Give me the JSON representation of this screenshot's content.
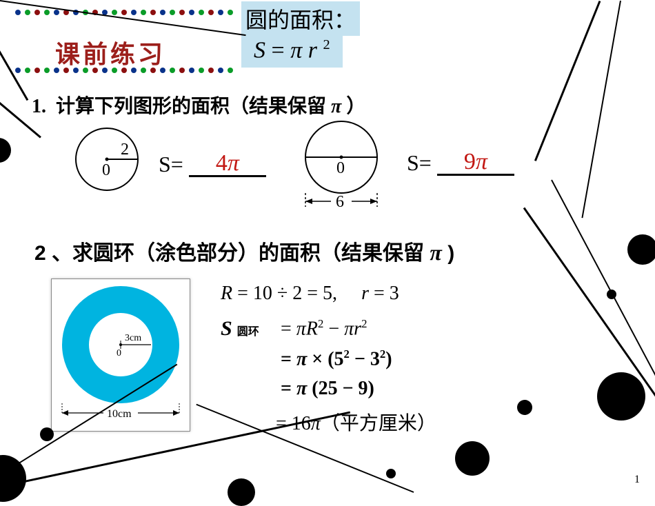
{
  "header": {
    "title": "课前练习",
    "title_color": "#9c1f1b",
    "dot_colors": [
      "#09328a",
      "#0a9c28",
      "#8c0f0f",
      "#0a9c28",
      "#09328a",
      "#8c0f0f",
      "#09328a",
      "#0a9c28",
      "#8c0f0f",
      "#09328a",
      "#0a9c28",
      "#8c0f0f",
      "#09328a",
      "#0a9c28",
      "#8c0f0f",
      "#09328a",
      "#0a9c28",
      "#8c0f0f",
      "#09328a",
      "#0a9c28",
      "#8c0f0f",
      "#09328a",
      "#0a9c28"
    ]
  },
  "formula_box": {
    "title": "圆的面积：",
    "formula_S": "S",
    "formula_eq": " = ",
    "formula_pi": "π",
    "formula_r": "r",
    "formula_exp": "2",
    "bg": "#c4e2f0",
    "fontsize_title": 32,
    "fontsize_formula": 34
  },
  "q1": {
    "number": "1.",
    "text": "计算下列图形的面积（结果保留",
    "pi": "π",
    "rparen": "）",
    "circle1": {
      "radius_label": "2",
      "center_label": "0",
      "answer": "4π"
    },
    "circle2": {
      "diameter_label": "6",
      "center_label": "0",
      "answer": "9π"
    },
    "s_label": "S=",
    "answer_color": "#c21712",
    "underline_width": 112
  },
  "q2": {
    "number": "2",
    "text": "、求圆环（涂色部分）的面积（结果保留",
    "pi": "π",
    "rparen": ")",
    "annulus": {
      "outer_color": "#00b4e0",
      "inner_r_label": "3cm",
      "center_label": "0",
      "outer_d_label": "10cm"
    },
    "work": {
      "line1_R": "R",
      "line1_rest": " = 10 ÷ 2 = 5,",
      "line1_r": "r",
      "line1_r_rest": " = 3",
      "S_label": "S",
      "S_sub": "圆环",
      "line2": " = πR² − πr²",
      "line3": " = π × (5² − 3²)",
      "line4": " = π (25 − 9)",
      "line5_a": " = 16",
      "line5_pi": "π",
      "line5_b": "（平方厘米）"
    }
  },
  "page_number": "1",
  "decor": {
    "dot_color": "#000000",
    "line_color": "#000000"
  }
}
